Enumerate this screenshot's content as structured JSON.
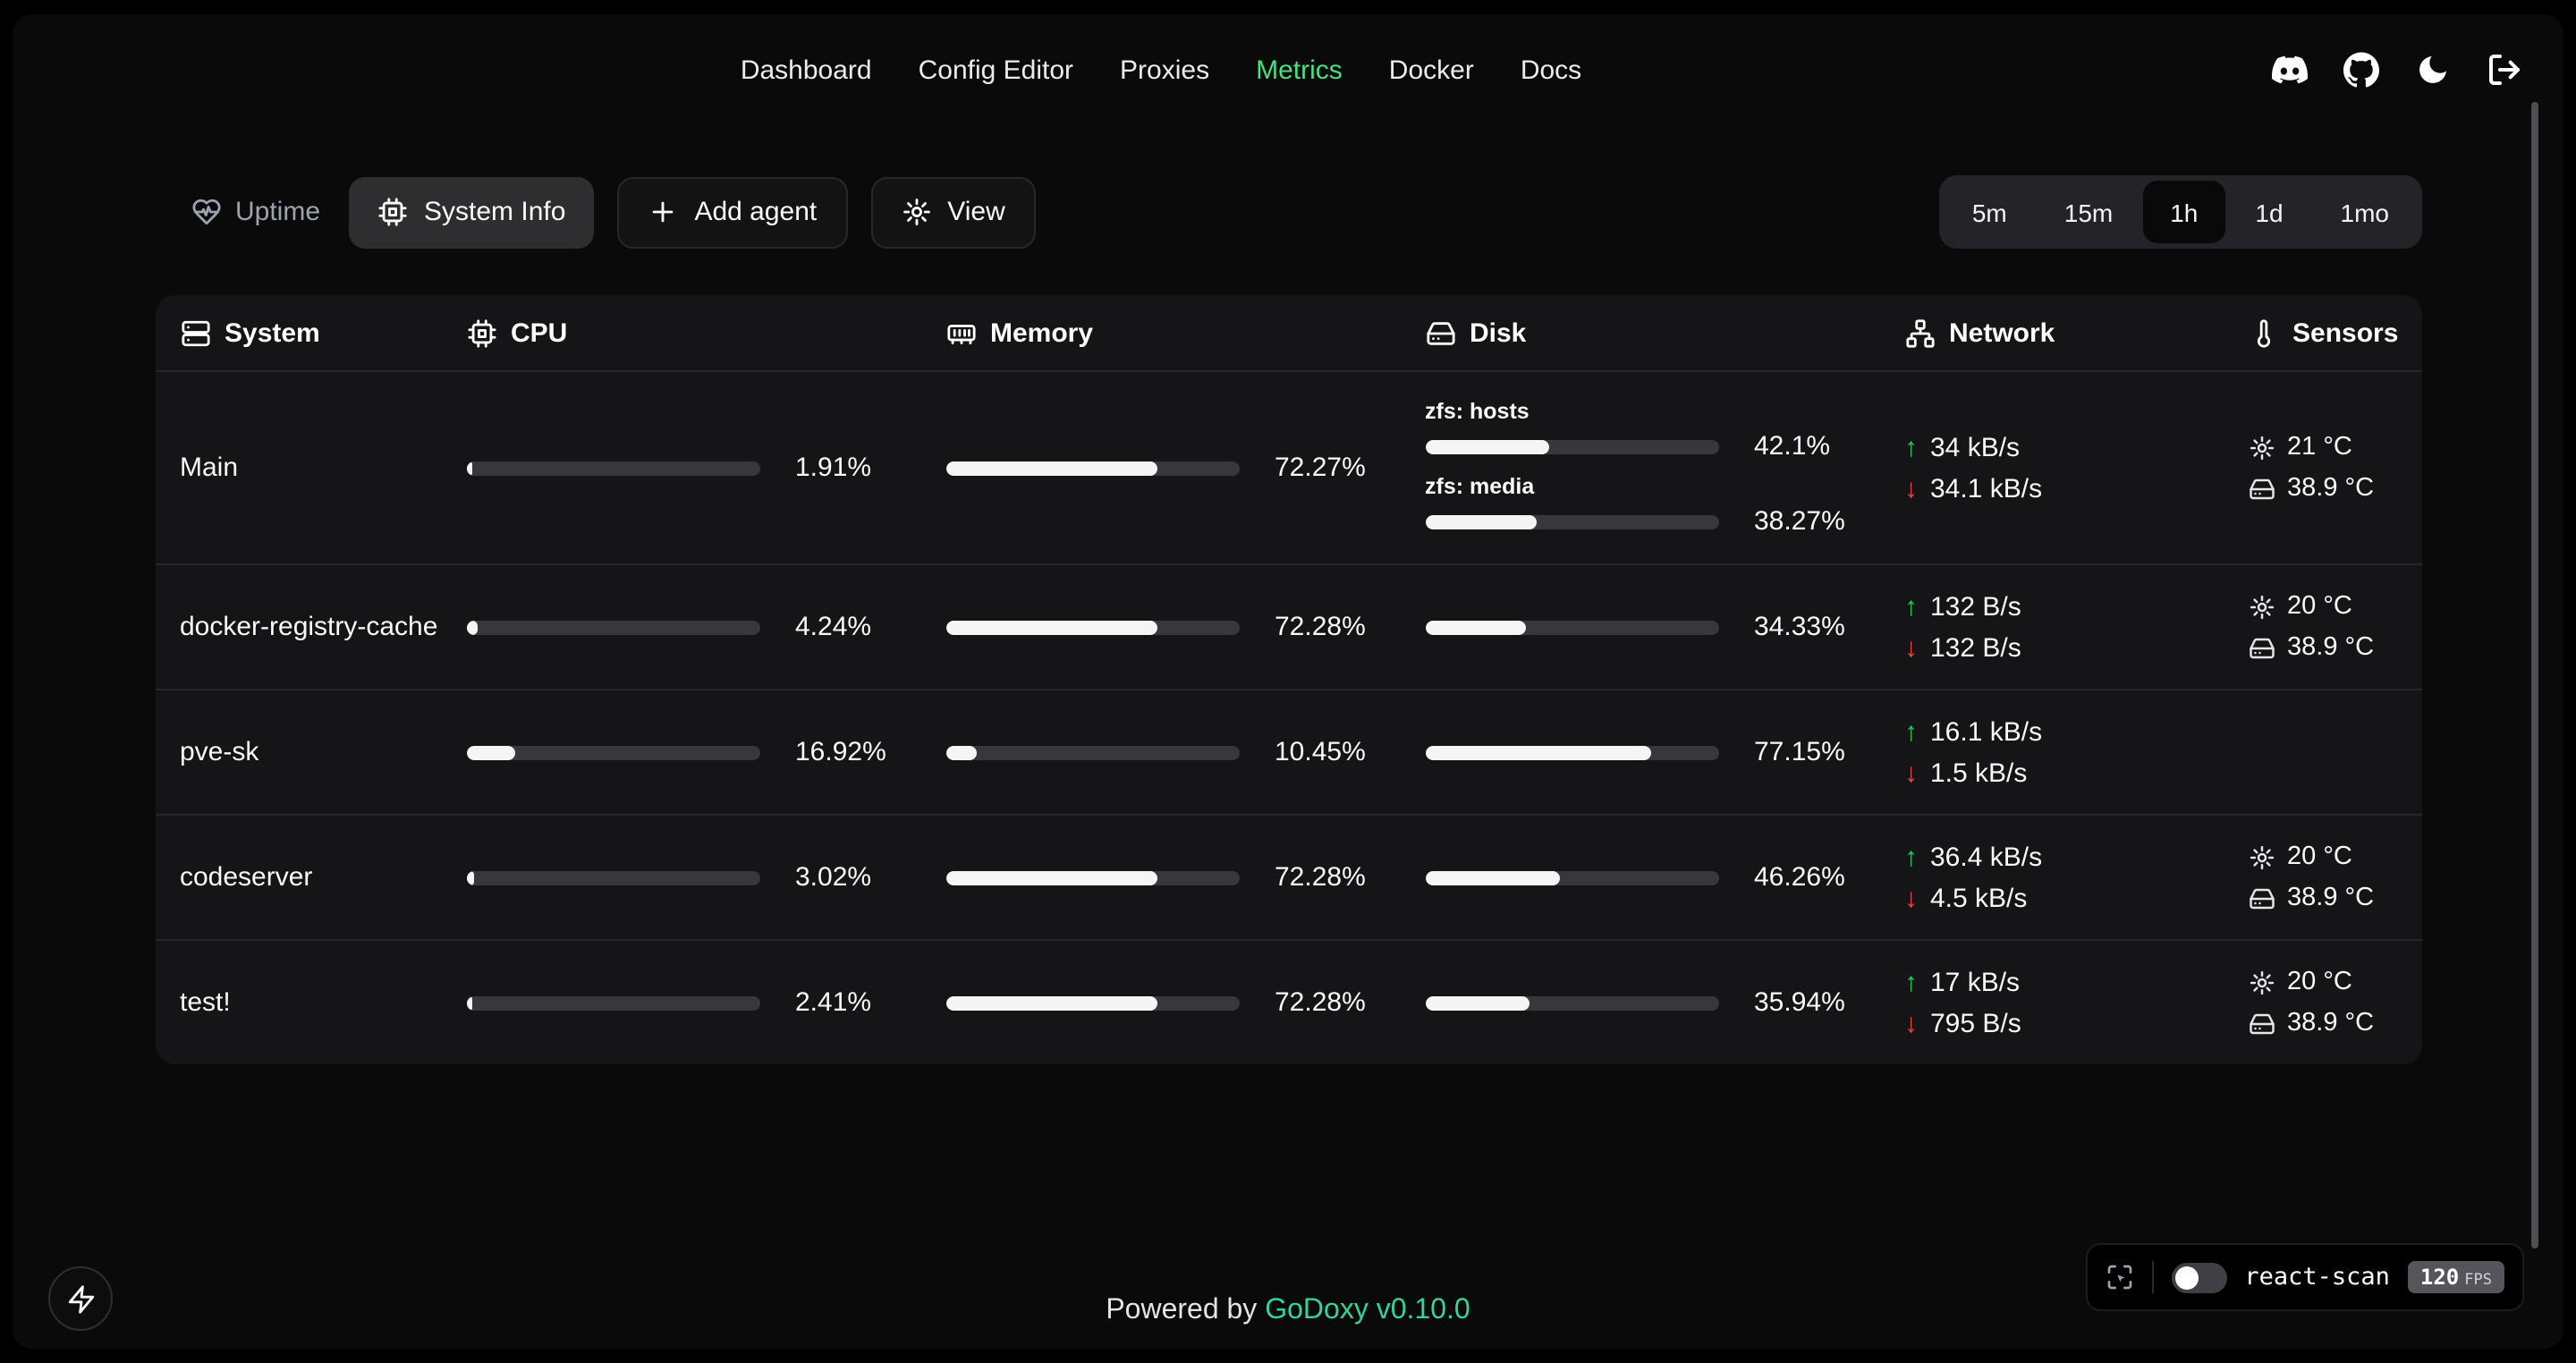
{
  "colors": {
    "accent_green": "#4ade80",
    "up_green": "#22c55e",
    "down_red": "#ef4444",
    "brand_green": "#34d399",
    "bar_fill": "#f5f5f5"
  },
  "nav": {
    "links": [
      {
        "label": "Dashboard"
      },
      {
        "label": "Config Editor"
      },
      {
        "label": "Proxies"
      },
      {
        "label": "Metrics",
        "active": true
      },
      {
        "label": "Docker"
      },
      {
        "label": "Docs"
      }
    ],
    "icons": [
      "discord-icon",
      "github-icon",
      "theme-toggle-moon-icon",
      "logout-icon"
    ]
  },
  "toolbar": {
    "uptime": "Uptime",
    "system_info": "System Info",
    "add_agent": "Add agent",
    "view": "View"
  },
  "time_ranges": {
    "options": [
      "5m",
      "15m",
      "1h",
      "1d",
      "1mo"
    ],
    "selected": "1h"
  },
  "table": {
    "columns": [
      "System",
      "CPU",
      "Memory",
      "Disk",
      "Network",
      "Sensors"
    ],
    "rows": [
      {
        "system": "Main",
        "cpu": {
          "percent": "1.91%",
          "value": 1.91
        },
        "memory": {
          "percent": "72.27%",
          "value": 72.27
        },
        "disks": [
          {
            "label": "zfs: hosts",
            "percent": "42.1%",
            "value": 42.1
          },
          {
            "label": "zfs: media",
            "percent": "38.27%",
            "value": 38.27
          }
        ],
        "network": {
          "up": "34 kB/s",
          "down": "34.1 kB/s"
        },
        "sensors": {
          "cpu_temp": "21 °C",
          "disk_temp": "38.9 °C"
        }
      },
      {
        "system": "docker-registry-cache",
        "cpu": {
          "percent": "4.24%",
          "value": 4.24
        },
        "memory": {
          "percent": "72.28%",
          "value": 72.28
        },
        "disks": [
          {
            "percent": "34.33%",
            "value": 34.33
          }
        ],
        "network": {
          "up": "132 B/s",
          "down": "132 B/s"
        },
        "sensors": {
          "cpu_temp": "20 °C",
          "disk_temp": "38.9 °C"
        }
      },
      {
        "system": "pve-sk",
        "cpu": {
          "percent": "16.92%",
          "value": 16.92
        },
        "memory": {
          "percent": "10.45%",
          "value": 10.45
        },
        "disks": [
          {
            "percent": "77.15%",
            "value": 77.15
          }
        ],
        "network": {
          "up": "16.1 kB/s",
          "down": "1.5 kB/s"
        },
        "sensors": null
      },
      {
        "system": "codeserver",
        "cpu": {
          "percent": "3.02%",
          "value": 3.02
        },
        "memory": {
          "percent": "72.28%",
          "value": 72.28
        },
        "disks": [
          {
            "percent": "46.26%",
            "value": 46.26
          }
        ],
        "network": {
          "up": "36.4 kB/s",
          "down": "4.5 kB/s"
        },
        "sensors": {
          "cpu_temp": "20 °C",
          "disk_temp": "38.9 °C"
        }
      },
      {
        "system": "test!",
        "cpu": {
          "percent": "2.41%",
          "value": 2.41
        },
        "memory": {
          "percent": "72.28%",
          "value": 72.28
        },
        "disks": [
          {
            "percent": "35.94%",
            "value": 35.94
          }
        ],
        "network": {
          "up": "17 kB/s",
          "down": "795 B/s"
        },
        "sensors": {
          "cpu_temp": "20 °C",
          "disk_temp": "38.9 °C"
        }
      }
    ]
  },
  "footer": {
    "powered_by": "Powered by",
    "brand": "GoDoxy",
    "version": "v0.10.0"
  },
  "react_scan": {
    "label": "react-scan",
    "fps": "120",
    "fps_unit": "FPS"
  }
}
